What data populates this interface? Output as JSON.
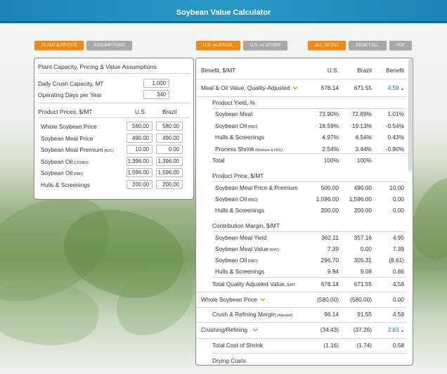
{
  "header": {
    "title": "Soybean Value Calculator"
  },
  "left_buttons": {
    "plant_prices": "PLANT & PRICES",
    "assumptions": "ASSUMPTIONS"
  },
  "right_buttons": {
    "us_vs_brazil": "U.S. vs BRAZIL",
    "us_vs_other": "U.S. vs OTHER",
    "all_detail": "ALL DETAIL",
    "reset_all": "RESET ALL",
    "pdf": "PDF"
  },
  "left_panel": {
    "title": "Plant Capacity, Pricing & Value Assumptions",
    "capacity_label": "Daily Crush Capacity, MT",
    "capacity_value": "1,000",
    "days_label": "Operating Days per Year",
    "days_value": "340",
    "prices_header": "Product Prices, $/MT",
    "col_us": "U.S.",
    "col_brazil": "Brazil",
    "rows": [
      {
        "label": "Whole Soybean Price",
        "tag": "",
        "us": "580.00",
        "brazil": "580.00"
      },
      {
        "label": "Soybean Meal Price",
        "tag": "",
        "us": "490.00",
        "brazil": "490.00"
      },
      {
        "label": "Soybean Meal Premium",
        "tag": "(NVC)",
        "us": "10.00",
        "brazil": "0.00"
      },
      {
        "label": "Soybean Oil",
        "tag": "(CDSBO)",
        "us": "1,396.00",
        "brazil": "1,396.00"
      },
      {
        "label": "Soybean Oil",
        "tag": "(RBD)",
        "us": "1,596.00",
        "brazil": "1,596.00"
      },
      {
        "label": "Hulls & Screenings",
        "tag": "",
        "us": "200.00",
        "brazil": "200.00"
      }
    ]
  },
  "right_panel": {
    "head": {
      "benefit_label": "Benefit, $/MT",
      "us": "U.S.",
      "brazil": "Brazil",
      "benefit": "Benefit"
    },
    "meal_oil": {
      "label": "Meal & Oil Value, Quality-Adjusted",
      "us": "676.14",
      "brazil": "671.55",
      "benefit": "4.59"
    },
    "yield_header": "Product Yield, %",
    "yield_rows": [
      {
        "label": "Soybean Meal",
        "tag": "",
        "us": "73.90%",
        "brazil": "72.89%",
        "benefit": "1.01%"
      },
      {
        "label": "Soybean Oil",
        "tag": "(RBD)",
        "us": "18.59%",
        "brazil": "19.13%",
        "benefit": "-0.54%"
      },
      {
        "label": "Hulls & Screenings",
        "tag": "",
        "us": "4.97%",
        "brazil": "4.54%",
        "benefit": "0.43%"
      },
      {
        "label": "Process Shrink",
        "tag": "(Moisture & NOL)",
        "us": "2.54%",
        "brazil": "3.44%",
        "benefit": "-0.90%"
      }
    ],
    "yield_total": {
      "label": "Total",
      "us": "100%",
      "brazil": "100%"
    },
    "price_header": "Product Price, $/MT",
    "price_rows": [
      {
        "label": "Soybean Meal Price & Premium",
        "tag": "",
        "us": "500.00",
        "brazil": "490.00",
        "benefit": "10.00"
      },
      {
        "label": "Soybean Oil",
        "tag": "(RBD)",
        "us": "1,596.00",
        "brazil": "1,596.00",
        "benefit": "0.00"
      },
      {
        "label": "Hulls & Screenings",
        "tag": "",
        "us": "200.00",
        "brazil": "200.00",
        "benefit": "0.00"
      }
    ],
    "margin_header": "Contribution Margin, $/MT",
    "margin_rows": [
      {
        "label": "Soybean Meal Yield",
        "tag": "",
        "us": "362.11",
        "brazil": "357.16",
        "benefit": "4.95"
      },
      {
        "label": "Soybean Meal Value",
        "tag": "(NVC)",
        "us": "7.39",
        "brazil": "0.00",
        "benefit": "7.39"
      },
      {
        "label": "Soybean Oil",
        "tag": "(RBD)",
        "us": "296.70",
        "brazil": "305.31",
        "benefit": "(8.61)"
      },
      {
        "label": "Hulls & Screenings",
        "tag": "",
        "us": "9.94",
        "brazil": "9.08",
        "benefit": "0.86"
      }
    ],
    "total_quality": {
      "label": "Total Quality Adjusted Value,",
      "tag": "$/MT",
      "us": "676.14",
      "brazil": "671.55",
      "benefit": "4.59"
    },
    "whole_soy": {
      "label": "Whole Soybean Price",
      "us": "(580.00)",
      "brazil": "(580.00)",
      "benefit": "0.00"
    },
    "crush_margin": {
      "label": "Crush & Refining Margin",
      "tag": "(Adjusted)",
      "us": "96.14",
      "brazil": "91.55",
      "benefit": "4.59"
    },
    "crushing": {
      "label": "Crushing/Refining",
      "us": "(34.43)",
      "brazil": "(37.26)",
      "benefit": "2.83"
    },
    "shrink": {
      "label": "Total Cost of Shrink",
      "us": "(1.16)",
      "brazil": "(1.74)",
      "benefit": "0.58"
    },
    "drying": {
      "label": "Drying Costs"
    }
  },
  "colors": {
    "header": "#1b86b5",
    "orange": "#ed8b1a",
    "grey": "#a8a8a8",
    "benefit_blue": "#1c75bc"
  }
}
